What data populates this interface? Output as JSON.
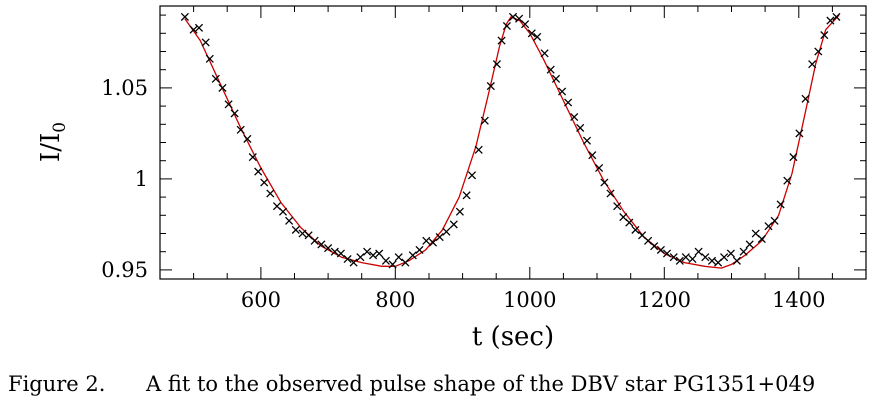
{
  "chart_data": {
    "type": "scatter",
    "xlabel": "t (sec)",
    "ylabel": "I/I",
    "ylabel_sub": "0",
    "xlim": [
      450,
      1500
    ],
    "ylim": [
      0.945,
      1.095
    ],
    "xticks": [
      600,
      800,
      1000,
      1200,
      1400
    ],
    "yticks": [
      0.95,
      1,
      1.05
    ],
    "ytick_labels": [
      "0.95",
      "1",
      "1.05"
    ],
    "grid": false,
    "series": [
      {
        "marker": "x",
        "color": "#000000",
        "points": [
          [
            487,
            1.089
          ],
          [
            500,
            1.082
          ],
          [
            508,
            1.083
          ],
          [
            518,
            1.075
          ],
          [
            524,
            1.066
          ],
          [
            533,
            1.055
          ],
          [
            543,
            1.05
          ],
          [
            552,
            1.041
          ],
          [
            561,
            1.036
          ],
          [
            570,
            1.027
          ],
          [
            580,
            1.022
          ],
          [
            588,
            1.012
          ],
          [
            596,
            1.004
          ],
          [
            605,
            0.998
          ],
          [
            614,
            0.992
          ],
          [
            624,
            0.985
          ],
          [
            633,
            0.982
          ],
          [
            642,
            0.977
          ],
          [
            652,
            0.972
          ],
          [
            662,
            0.97
          ],
          [
            671,
            0.969
          ],
          [
            680,
            0.966
          ],
          [
            690,
            0.964
          ],
          [
            700,
            0.962
          ],
          [
            710,
            0.96
          ],
          [
            719,
            0.959
          ],
          [
            729,
            0.956
          ],
          [
            738,
            0.954
          ],
          [
            748,
            0.957
          ],
          [
            758,
            0.96
          ],
          [
            767,
            0.958
          ],
          [
            776,
            0.959
          ],
          [
            786,
            0.955
          ],
          [
            796,
            0.953
          ],
          [
            805,
            0.957
          ],
          [
            815,
            0.954
          ],
          [
            826,
            0.958
          ],
          [
            836,
            0.961
          ],
          [
            846,
            0.966
          ],
          [
            856,
            0.965
          ],
          [
            866,
            0.968
          ],
          [
            876,
            0.971
          ],
          [
            887,
            0.975
          ],
          [
            896,
            0.982
          ],
          [
            906,
            0.991
          ],
          [
            914,
            1.002
          ],
          [
            924,
            1.016
          ],
          [
            933,
            1.032
          ],
          [
            942,
            1.051
          ],
          [
            951,
            1.063
          ],
          [
            958,
            1.076
          ],
          [
            966,
            1.084
          ],
          [
            975,
            1.089
          ],
          [
            984,
            1.088
          ],
          [
            993,
            1.085
          ],
          [
            1003,
            1.08
          ],
          [
            1011,
            1.078
          ],
          [
            1022,
            1.069
          ],
          [
            1031,
            1.06
          ],
          [
            1039,
            1.055
          ],
          [
            1048,
            1.048
          ],
          [
            1057,
            1.042
          ],
          [
            1066,
            1.034
          ],
          [
            1075,
            1.028
          ],
          [
            1085,
            1.021
          ],
          [
            1093,
            1.013
          ],
          [
            1103,
            1.006
          ],
          [
            1111,
            0.998
          ],
          [
            1120,
            0.992
          ],
          [
            1130,
            0.985
          ],
          [
            1139,
            0.979
          ],
          [
            1148,
            0.976
          ],
          [
            1157,
            0.972
          ],
          [
            1167,
            0.969
          ],
          [
            1176,
            0.966
          ],
          [
            1185,
            0.963
          ],
          [
            1195,
            0.961
          ],
          [
            1204,
            0.959
          ],
          [
            1214,
            0.957
          ],
          [
            1223,
            0.955
          ],
          [
            1232,
            0.957
          ],
          [
            1242,
            0.956
          ],
          [
            1251,
            0.96
          ],
          [
            1261,
            0.957
          ],
          [
            1271,
            0.955
          ],
          [
            1280,
            0.954
          ],
          [
            1289,
            0.957
          ],
          [
            1299,
            0.959
          ],
          [
            1308,
            0.955
          ],
          [
            1318,
            0.96
          ],
          [
            1327,
            0.964
          ],
          [
            1336,
            0.97
          ],
          [
            1345,
            0.967
          ],
          [
            1355,
            0.974
          ],
          [
            1364,
            0.977
          ],
          [
            1373,
            0.986
          ],
          [
            1383,
            0.999
          ],
          [
            1392,
            1.012
          ],
          [
            1401,
            1.025
          ],
          [
            1410,
            1.044
          ],
          [
            1420,
            1.063
          ],
          [
            1429,
            1.07
          ],
          [
            1438,
            1.079
          ],
          [
            1447,
            1.087
          ],
          [
            1456,
            1.089
          ]
        ]
      },
      {
        "line": true,
        "color": "#cc0000",
        "points": [
          [
            487,
            1.088
          ],
          [
            510,
            1.076
          ],
          [
            540,
            1.052
          ],
          [
            570,
            1.028
          ],
          [
            600,
            1.006
          ],
          [
            630,
            0.987
          ],
          [
            660,
            0.973
          ],
          [
            690,
            0.963
          ],
          [
            720,
            0.957
          ],
          [
            750,
            0.954
          ],
          [
            780,
            0.952
          ],
          [
            800,
            0.952
          ],
          [
            820,
            0.955
          ],
          [
            845,
            0.961
          ],
          [
            870,
            0.972
          ],
          [
            895,
            0.99
          ],
          [
            920,
            1.018
          ],
          [
            940,
            1.049
          ],
          [
            955,
            1.073
          ],
          [
            965,
            1.085
          ],
          [
            972,
            1.089
          ],
          [
            985,
            1.087
          ],
          [
            1000,
            1.08
          ],
          [
            1020,
            1.066
          ],
          [
            1050,
            1.043
          ],
          [
            1080,
            1.02
          ],
          [
            1110,
            0.999
          ],
          [
            1140,
            0.982
          ],
          [
            1170,
            0.968
          ],
          [
            1200,
            0.959
          ],
          [
            1230,
            0.954
          ],
          [
            1260,
            0.952
          ],
          [
            1285,
            0.951
          ],
          [
            1300,
            0.953
          ],
          [
            1320,
            0.958
          ],
          [
            1345,
            0.966
          ],
          [
            1370,
            0.98
          ],
          [
            1390,
            1.003
          ],
          [
            1410,
            1.037
          ],
          [
            1425,
            1.063
          ],
          [
            1440,
            1.082
          ],
          [
            1460,
            1.09
          ]
        ]
      }
    ]
  },
  "caption": {
    "number": "Figure 2.",
    "text": "A fit to the observed pulse shape of the DBV star PG1351+049"
  }
}
